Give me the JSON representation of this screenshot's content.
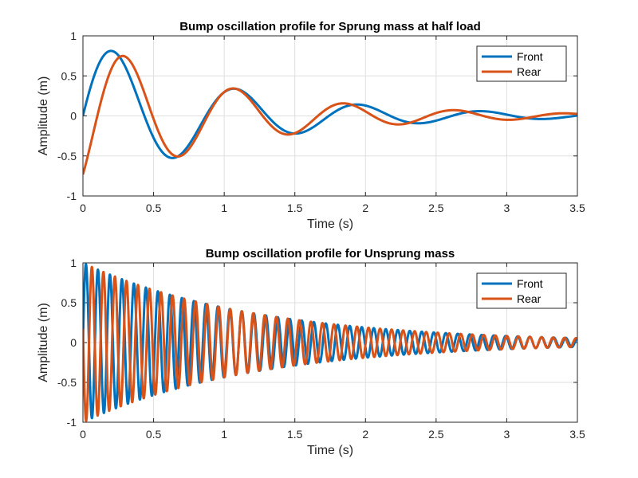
{
  "chart_data": [
    {
      "type": "line",
      "title": "Bump oscillation profile for Sprung mass at half load",
      "xlabel": "Time (s)",
      "ylabel": "Amplitude (m)",
      "xlim": [
        0,
        3.5
      ],
      "ylim": [
        -1,
        1
      ],
      "xticks": [
        "0",
        "0.5",
        "1",
        "1.5",
        "2",
        "2.5",
        "3",
        "3.5"
      ],
      "yticks": [
        "-1",
        "-0.5",
        "0",
        "0.5",
        "1"
      ],
      "grid": true,
      "legend_position": "top-right",
      "series": [
        {
          "name": "Front",
          "color": "#0072BD",
          "model": {
            "form": "A*exp(-d*t)*sin(w*t+phi)",
            "A": 1.0,
            "d": 1.0,
            "w": 7.22,
            "phi": 0
          }
        },
        {
          "name": "Rear",
          "color": "#D95319",
          "model": {
            "form": "A*exp(-d*t)*sin(w*t+phi)",
            "A": 1.0,
            "d": 1.0,
            "w": 8.05,
            "phi": -0.82
          }
        }
      ]
    },
    {
      "type": "line",
      "title": "Bump oscillation profile for Unsprung mass",
      "xlabel": "Time (s)",
      "ylabel": "Amplitude (m)",
      "xlim": [
        0,
        3.5
      ],
      "ylim": [
        -1,
        1
      ],
      "xticks": [
        "0",
        "0.5",
        "1",
        "1.5",
        "2",
        "2.5",
        "3",
        "3.5"
      ],
      "yticks": [
        "-1",
        "-0.5",
        "0",
        "0.5",
        "1"
      ],
      "grid": true,
      "legend_position": "top-right",
      "series": [
        {
          "name": "Front",
          "color": "#0072BD",
          "model": {
            "form": "A*exp(-d*t)*sin(w*t+phi)",
            "A": 1.0,
            "d": 0.83,
            "w": 74,
            "phi": 0
          }
        },
        {
          "name": "Rear",
          "color": "#D95319",
          "model": {
            "form": "A*exp(-d*t)*sin(w*t+phi)",
            "A": 1.0,
            "d": 0.83,
            "w": 77,
            "phi": 2.97
          }
        }
      ]
    }
  ]
}
